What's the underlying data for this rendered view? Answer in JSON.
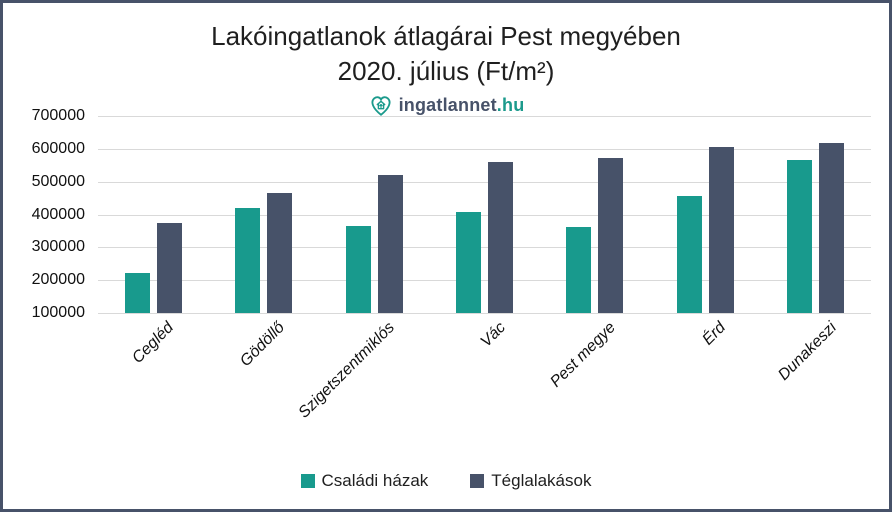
{
  "page": {
    "background": "#ffffff",
    "border_color": "#475269"
  },
  "title": {
    "line1": "Lakóingatlanok átlagárai Pest megyében",
    "line2": "2020. július (Ft/m²)"
  },
  "logo": {
    "icon": "heart-house-icon",
    "icon_color": "#1b9a8c",
    "text_main": "ingatlannet",
    "text_suffix": ".hu",
    "text_main_color": "#475269",
    "text_suffix_color": "#1b9a8c"
  },
  "chart_data": {
    "type": "bar",
    "title": "Lakóingatlanok átlagárai Pest megyében 2020. július (Ft/m²)",
    "categories": [
      "Cegléd",
      "Gödöllő",
      "Szigetszentmiklós",
      "Vác",
      "Pest megye",
      "Érd",
      "Dunakeszi"
    ],
    "series": [
      {
        "name": "Családi házak",
        "color": "#189a8d",
        "values": [
          222000,
          420000,
          365000,
          407000,
          362000,
          456000,
          566000
        ]
      },
      {
        "name": "Téglalakások",
        "color": "#475269",
        "values": [
          375000,
          465000,
          520000,
          560000,
          573000,
          605000,
          617000
        ]
      }
    ],
    "xlabel": "",
    "ylabel": "",
    "ylim": [
      100000,
      700000
    ],
    "ytick_step": 100000,
    "yticks": [
      700000,
      600000,
      500000,
      400000,
      300000,
      200000,
      100000
    ],
    "grid": true,
    "gridline_color": "#d9d9d9",
    "legend_position": "bottom",
    "category_label_style": "italic-rotated-45"
  }
}
